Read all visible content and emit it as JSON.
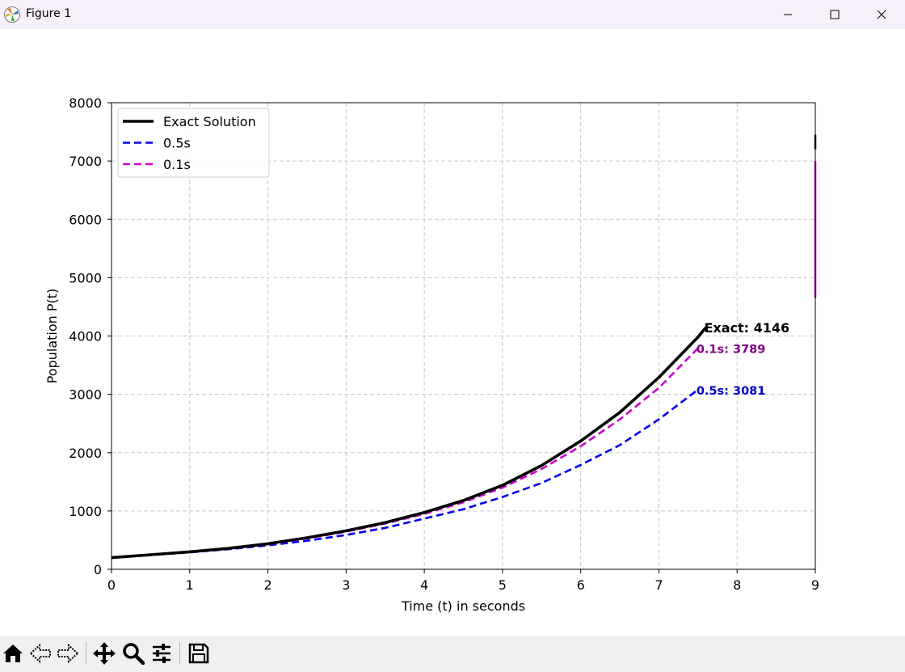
{
  "window": {
    "title": "Figure 1",
    "icon": "matplotlib-logo-icon",
    "controls": [
      "minimize-icon",
      "maximize-icon",
      "close-icon"
    ]
  },
  "toolbar": {
    "buttons": [
      "home-icon",
      "back-arrow-icon",
      "forward-arrow-icon",
      "pan-move-icon",
      "zoom-magnifier-icon",
      "configure-subplots-icon",
      "save-disk-icon"
    ]
  },
  "chart_data": {
    "type": "line",
    "title": "",
    "xlabel": "Time (t) in seconds",
    "ylabel": "Population P(t)",
    "xlim": [
      0,
      9
    ],
    "ylim": [
      0,
      8000
    ],
    "xticks": [
      "0",
      "1",
      "2",
      "3",
      "4",
      "5",
      "6",
      "7",
      "8",
      "9"
    ],
    "yticks": [
      "0",
      "1000",
      "2000",
      "3000",
      "4000",
      "5000",
      "6000",
      "7000",
      "8000"
    ],
    "grid": true,
    "legend_position": "upper-left",
    "series": [
      {
        "name": "Exact Solution",
        "color": "#000000",
        "style": "solid",
        "x": [
          0,
          0.5,
          1,
          1.5,
          2,
          2.5,
          3,
          3.5,
          4,
          4.5,
          5,
          5.5,
          6,
          6.5,
          7,
          7.5,
          7.6
        ],
        "y": [
          200,
          249,
          299,
          359,
          438,
          541,
          660,
          800,
          975,
          1180,
          1440,
          1780,
          2200,
          2690,
          3290,
          3980,
          4146
        ]
      },
      {
        "name": "0.5s",
        "color": "#0000ee",
        "style": "dashed",
        "x": [
          0,
          0.5,
          1,
          1.5,
          2,
          2.5,
          3,
          3.5,
          4,
          4.5,
          5,
          5.5,
          6,
          6.5,
          7,
          7.5
        ],
        "y": [
          200,
          245,
          290,
          345,
          410,
          490,
          588,
          710,
          870,
          1030,
          1240,
          1480,
          1790,
          2130,
          2570,
          3081
        ]
      },
      {
        "name": "0.1s",
        "color": "#cc00cc",
        "style": "dashed",
        "x": [
          0,
          0.5,
          1,
          1.5,
          2,
          2.5,
          3,
          3.5,
          4,
          4.5,
          5,
          5.5,
          6,
          6.5,
          7,
          7.5
        ],
        "y": [
          200,
          248,
          297,
          355,
          430,
          528,
          645,
          785,
          950,
          1150,
          1400,
          1720,
          2110,
          2570,
          3110,
          3789
        ]
      }
    ],
    "annotations": [
      {
        "text": "Exact: 4146",
        "x": 7.6,
        "y": 4146,
        "color": "#000000"
      },
      {
        "text": "0.1s: 3789",
        "x": 7.5,
        "y": 3789,
        "color": "#800080"
      },
      {
        "text": "0.5s: 3081",
        "x": 7.5,
        "y": 3081,
        "color": "#0000cc"
      }
    ],
    "right_edge_marks": [
      {
        "color": "#000000",
        "y_range": [
          7200,
          7450
        ]
      },
      {
        "color": "#cc00cc",
        "y_range": [
          4650,
          7000
        ]
      }
    ]
  }
}
